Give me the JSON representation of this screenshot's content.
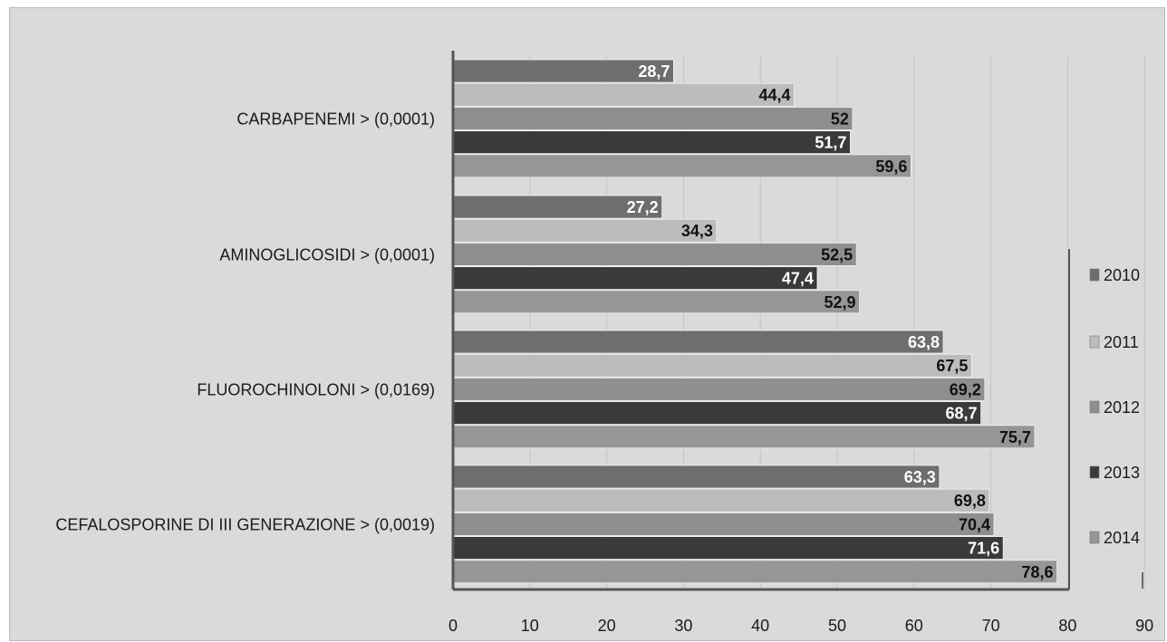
{
  "chart_data": {
    "type": "bar",
    "orientation": "horizontal",
    "categories": [
      "CARBAPENEMI > (0,0001)",
      "AMINOGLICOSIDI > (0,0001)",
      "FLUOROCHINOLONI > (0,0169)",
      "CEFALOSPORINE DI III GENERAZIONE    > (0,0019)"
    ],
    "series": [
      {
        "name": "2010",
        "color": "#6e6e6e",
        "label_color": "#ffffff",
        "values": [
          28.7,
          27.2,
          63.8,
          63.3
        ],
        "labels": [
          "28,7",
          "27,2",
          "63,8",
          "63,3"
        ]
      },
      {
        "name": "2011",
        "color": "#bcbcbc",
        "label_color": "#111111",
        "values": [
          44.4,
          34.3,
          67.5,
          69.8
        ],
        "labels": [
          "44,4",
          "34,3",
          "67,5",
          "69,8"
        ]
      },
      {
        "name": "2012",
        "color": "#8f8f8f",
        "label_color": "#111111",
        "values": [
          52,
          52.5,
          69.2,
          70.4
        ],
        "labels": [
          "52",
          "52,5",
          "69,2",
          "70,4"
        ]
      },
      {
        "name": "2013",
        "color": "#3a3a3a",
        "label_color": "#ffffff",
        "values": [
          51.7,
          47.4,
          68.7,
          71.6
        ],
        "labels": [
          "51,7",
          "47,4",
          "68,7",
          "71,6"
        ]
      },
      {
        "name": "2014",
        "color": "#969696",
        "label_color": "#111111",
        "values": [
          59.6,
          52.9,
          75.7,
          78.6
        ],
        "labels": [
          "59,6",
          "52,9",
          "75,7",
          "78,6"
        ]
      }
    ],
    "xlim": [
      0,
      90
    ],
    "xticks": [
      0,
      10,
      20,
      30,
      40,
      50,
      60,
      70,
      80,
      90
    ],
    "grid": true,
    "legend_position": "right",
    "title": "",
    "xlabel": "",
    "ylabel": ""
  }
}
